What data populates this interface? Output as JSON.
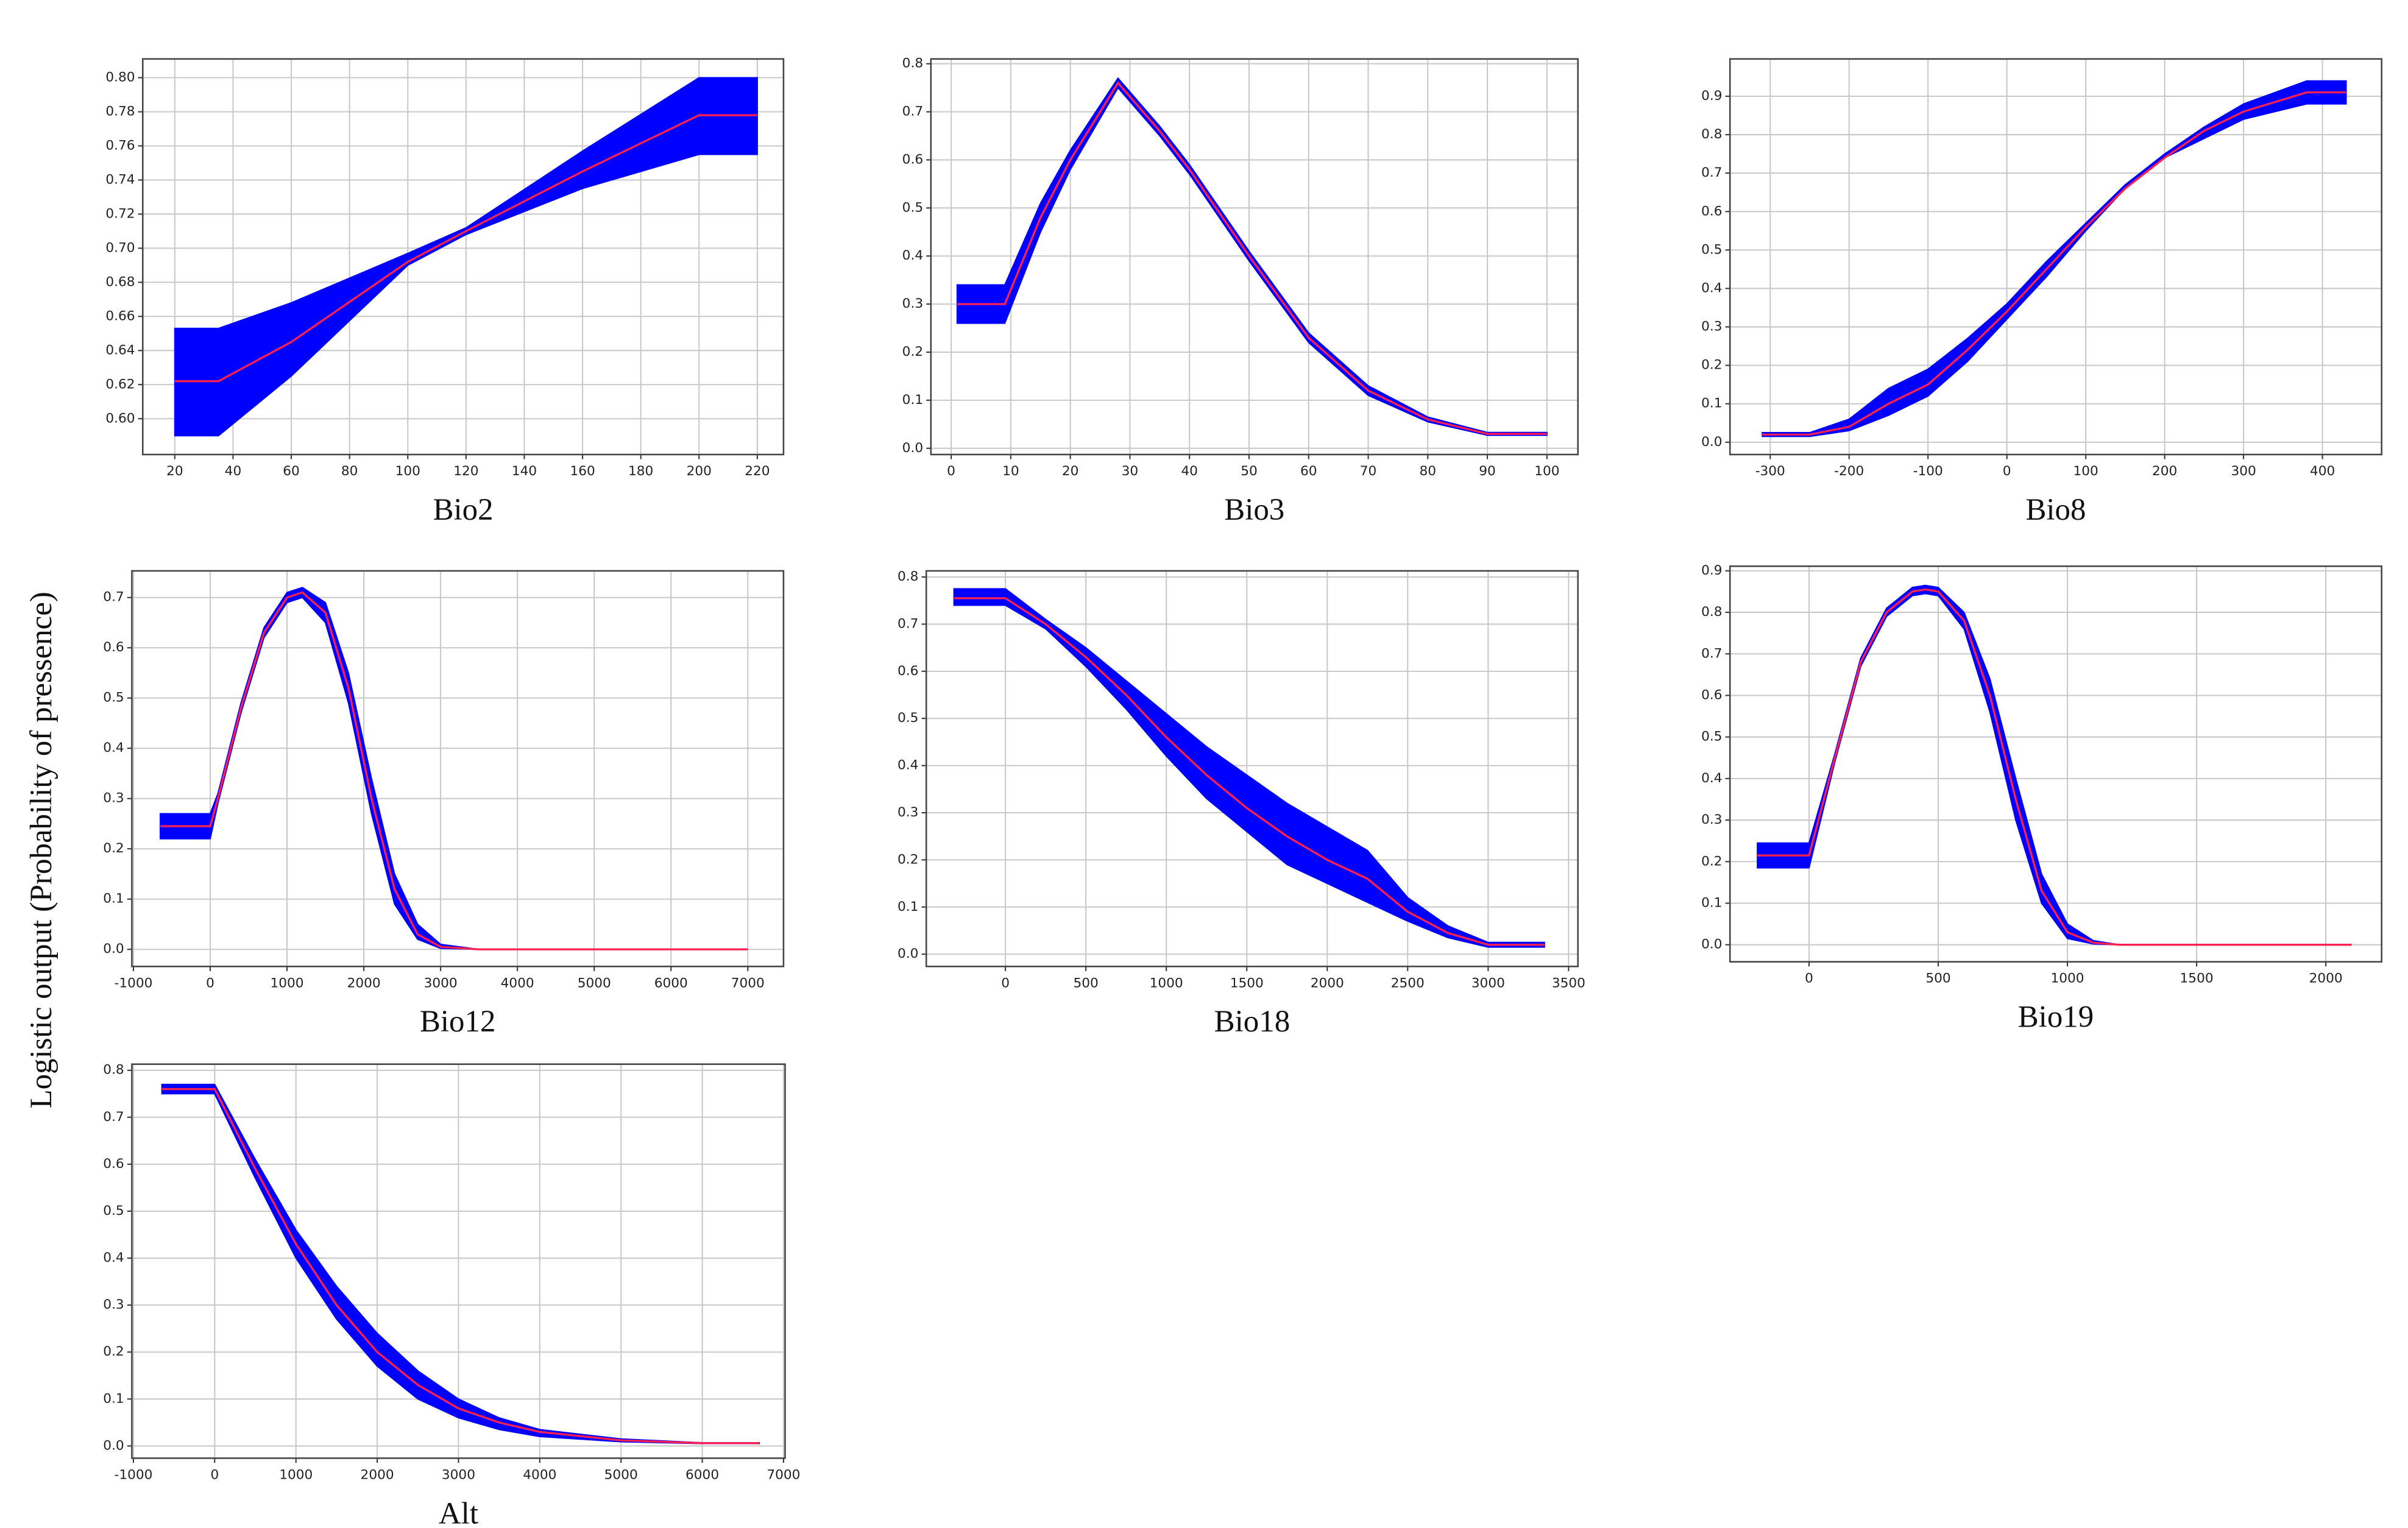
{
  "ylabel": "Logistic output (Probability of pressence)",
  "chart_data": [
    {
      "type": "line",
      "xlabel": "Bio2",
      "x": [
        20,
        35,
        60,
        100,
        120,
        160,
        200,
        220
      ],
      "band": {
        "color": "#0000ff",
        "upper": [
          0.653,
          0.653,
          0.668,
          0.697,
          0.712,
          0.757,
          0.8,
          0.8
        ],
        "lower": [
          0.59,
          0.59,
          0.625,
          0.69,
          0.708,
          0.735,
          0.755,
          0.755
        ]
      },
      "series": [
        {
          "color": "#ff2050",
          "values": [
            0.622,
            0.622,
            0.645,
            0.692,
            0.71,
            0.745,
            0.778,
            0.778
          ]
        }
      ],
      "xlim": [
        9,
        229
      ],
      "ylim": [
        0.579,
        0.811
      ],
      "xticks": [
        20,
        40,
        60,
        80,
        100,
        120,
        140,
        160,
        180,
        200,
        220
      ],
      "yticks": [
        {
          "value": 0.6,
          "label": "0.60"
        },
        0.62,
        0.64,
        0.66,
        0.68,
        {
          "value": 0.7,
          "label": "0.70"
        },
        0.72,
        0.74,
        0.76,
        0.78,
        {
          "value": 0.8,
          "label": "0.80"
        }
      ],
      "grid": true
    },
    {
      "type": "line",
      "xlabel": "Bio3",
      "x": [
        1,
        9,
        15,
        20,
        28,
        35,
        40,
        50,
        60,
        70,
        80,
        90,
        100
      ],
      "band": {
        "color": "#0000ff",
        "upper": [
          0.34,
          0.34,
          0.51,
          0.62,
          0.77,
          0.67,
          0.59,
          0.41,
          0.24,
          0.13,
          0.065,
          0.033,
          0.033
        ],
        "lower": [
          0.26,
          0.26,
          0.45,
          0.58,
          0.75,
          0.65,
          0.57,
          0.39,
          0.22,
          0.11,
          0.055,
          0.027,
          0.027
        ]
      },
      "series": [
        {
          "color": "#ff2050",
          "values": [
            0.3,
            0.3,
            0.48,
            0.6,
            0.76,
            0.66,
            0.58,
            0.4,
            0.23,
            0.12,
            0.06,
            0.03,
            0.03
          ]
        }
      ],
      "xlim": [
        -3.4,
        105.2
      ],
      "ylim": [
        -0.013,
        0.81
      ],
      "xticks": [
        0,
        10,
        20,
        30,
        40,
        50,
        60,
        70,
        80,
        90,
        100
      ],
      "yticks": [
        {
          "value": 0,
          "label": "0.0"
        },
        0.1,
        0.2,
        0.3,
        0.4,
        0.5,
        0.6,
        0.7,
        0.8
      ],
      "grid": true
    },
    {
      "type": "line",
      "xlabel": "Bio8",
      "x": [
        -310,
        -250,
        -200,
        -150,
        -100,
        -50,
        0,
        50,
        100,
        150,
        200,
        250,
        300,
        380,
        430
      ],
      "band": {
        "color": "#0000ff",
        "upper": [
          0.025,
          0.025,
          0.06,
          0.14,
          0.19,
          0.27,
          0.36,
          0.47,
          0.57,
          0.67,
          0.75,
          0.82,
          0.88,
          0.94,
          0.94
        ],
        "lower": [
          0.015,
          0.015,
          0.03,
          0.07,
          0.12,
          0.21,
          0.32,
          0.43,
          0.55,
          0.66,
          0.74,
          0.79,
          0.84,
          0.88,
          0.88
        ]
      },
      "series": [
        {
          "color": "#ff2050",
          "values": [
            0.02,
            0.02,
            0.04,
            0.1,
            0.15,
            0.24,
            0.34,
            0.45,
            0.56,
            0.66,
            0.74,
            0.81,
            0.86,
            0.91,
            0.91
          ]
        }
      ],
      "xlim": [
        -351,
        475
      ],
      "ylim": [
        -0.032,
        0.997
      ],
      "xticks": [
        -300,
        -200,
        -100,
        0,
        100,
        200,
        300,
        400
      ],
      "yticks": [
        {
          "value": 0,
          "label": "0.0"
        },
        0.1,
        0.2,
        0.3,
        0.4,
        0.5,
        0.6,
        0.7,
        0.8,
        0.9
      ],
      "grid": true
    },
    {
      "type": "line",
      "xlabel": "Bio12",
      "x": [
        -650,
        0,
        100,
        400,
        700,
        1000,
        1200,
        1500,
        1800,
        2100,
        2400,
        2700,
        3000,
        3500,
        4000,
        5000,
        7000
      ],
      "band": {
        "color": "#0000ff",
        "upper": [
          0.27,
          0.27,
          0.31,
          0.49,
          0.64,
          0.71,
          0.72,
          0.69,
          0.55,
          0.34,
          0.15,
          0.05,
          0.01,
          0,
          0,
          0,
          0
        ],
        "lower": [
          0.22,
          0.22,
          0.29,
          0.47,
          0.62,
          0.69,
          0.7,
          0.65,
          0.49,
          0.27,
          0.09,
          0.02,
          0.002,
          0,
          0,
          0,
          0
        ]
      },
      "series": [
        {
          "color": "#ff2050",
          "values": [
            0.245,
            0.245,
            0.3,
            0.48,
            0.63,
            0.7,
            0.71,
            0.67,
            0.52,
            0.3,
            0.12,
            0.03,
            0.005,
            0,
            0,
            0,
            0
          ]
        }
      ],
      "xlim": [
        -1020,
        7465
      ],
      "ylim": [
        -0.034,
        0.753
      ],
      "xticks": [
        -1000,
        0,
        1000,
        2000,
        3000,
        4000,
        5000,
        6000,
        7000
      ],
      "yticks": [
        {
          "value": 0,
          "label": "0.0"
        },
        0.1,
        0.2,
        0.3,
        0.4,
        0.5,
        0.6,
        0.7
      ],
      "grid": true
    },
    {
      "type": "line",
      "xlabel": "Bio18",
      "x": [
        -320,
        0,
        250,
        500,
        750,
        1000,
        1250,
        1500,
        1750,
        2000,
        2250,
        2500,
        2750,
        3000,
        3350
      ],
      "band": {
        "color": "#0000ff",
        "upper": [
          0.775,
          0.775,
          0.71,
          0.65,
          0.58,
          0.51,
          0.44,
          0.38,
          0.32,
          0.27,
          0.22,
          0.12,
          0.06,
          0.025,
          0.025
        ],
        "lower": [
          0.74,
          0.74,
          0.69,
          0.61,
          0.52,
          0.42,
          0.33,
          0.26,
          0.19,
          0.15,
          0.11,
          0.07,
          0.035,
          0.015,
          0.015
        ]
      },
      "series": [
        {
          "color": "#ff2050",
          "values": [
            0.755,
            0.755,
            0.7,
            0.63,
            0.55,
            0.46,
            0.38,
            0.31,
            0.25,
            0.2,
            0.16,
            0.09,
            0.045,
            0.02,
            0.02
          ]
        }
      ],
      "xlim": [
        -492,
        3558
      ],
      "ylim": [
        -0.026,
        0.813
      ],
      "xticks": [
        0,
        500,
        1000,
        1500,
        2000,
        2500,
        3000,
        3500
      ],
      "yticks": [
        {
          "value": 0,
          "label": "0.0"
        },
        0.1,
        0.2,
        0.3,
        0.4,
        0.5,
        0.6,
        0.7,
        0.8
      ],
      "grid": true
    },
    {
      "type": "line",
      "xlabel": "Bio19",
      "x": [
        -200,
        0,
        100,
        200,
        300,
        400,
        450,
        500,
        600,
        700,
        800,
        900,
        1000,
        1100,
        1200,
        1500,
        2100
      ],
      "band": {
        "color": "#0000ff",
        "upper": [
          0.245,
          0.245,
          0.46,
          0.69,
          0.81,
          0.86,
          0.865,
          0.86,
          0.8,
          0.64,
          0.4,
          0.17,
          0.05,
          0.01,
          0,
          0,
          0
        ],
        "lower": [
          0.185,
          0.185,
          0.44,
          0.67,
          0.79,
          0.84,
          0.845,
          0.84,
          0.76,
          0.56,
          0.3,
          0.1,
          0.015,
          0.002,
          0,
          0,
          0
        ]
      },
      "series": [
        {
          "color": "#ff2050",
          "values": [
            0.215,
            0.215,
            0.45,
            0.68,
            0.8,
            0.85,
            0.855,
            0.85,
            0.78,
            0.6,
            0.35,
            0.13,
            0.03,
            0.005,
            0,
            0,
            0
          ]
        }
      ],
      "xlim": [
        -306,
        2216
      ],
      "ylim": [
        -0.041,
        0.911
      ],
      "xticks": [
        0,
        500,
        1000,
        1500,
        2000
      ],
      "yticks": [
        {
          "value": 0,
          "label": "0.0"
        },
        0.1,
        0.2,
        0.3,
        0.4,
        0.5,
        0.6,
        0.7,
        0.8,
        0.9
      ],
      "grid": true
    },
    {
      "type": "line",
      "xlabel": "Alt",
      "x": [
        -650,
        0,
        500,
        1000,
        1500,
        2000,
        2500,
        3000,
        3500,
        4000,
        5000,
        6000,
        6700
      ],
      "band": {
        "color": "#0000ff",
        "upper": [
          0.77,
          0.77,
          0.61,
          0.46,
          0.34,
          0.24,
          0.16,
          0.1,
          0.06,
          0.035,
          0.015,
          0.007,
          0.007
        ],
        "lower": [
          0.75,
          0.75,
          0.57,
          0.4,
          0.27,
          0.17,
          0.1,
          0.06,
          0.035,
          0.02,
          0.009,
          0.005,
          0.005
        ]
      },
      "series": [
        {
          "color": "#ff2050",
          "values": [
            0.76,
            0.76,
            0.59,
            0.43,
            0.3,
            0.2,
            0.13,
            0.08,
            0.05,
            0.03,
            0.012,
            0.006,
            0.006
          ]
        }
      ],
      "xlim": [
        -1019,
        7019
      ],
      "ylim": [
        -0.026,
        0.813
      ],
      "xticks": [
        -1000,
        0,
        1000,
        2000,
        3000,
        4000,
        5000,
        6000,
        7000
      ],
      "yticks": [
        {
          "value": 0,
          "label": "0.0"
        },
        0.1,
        0.2,
        0.3,
        0.4,
        0.5,
        0.6,
        0.7,
        0.8
      ],
      "grid": true
    }
  ]
}
